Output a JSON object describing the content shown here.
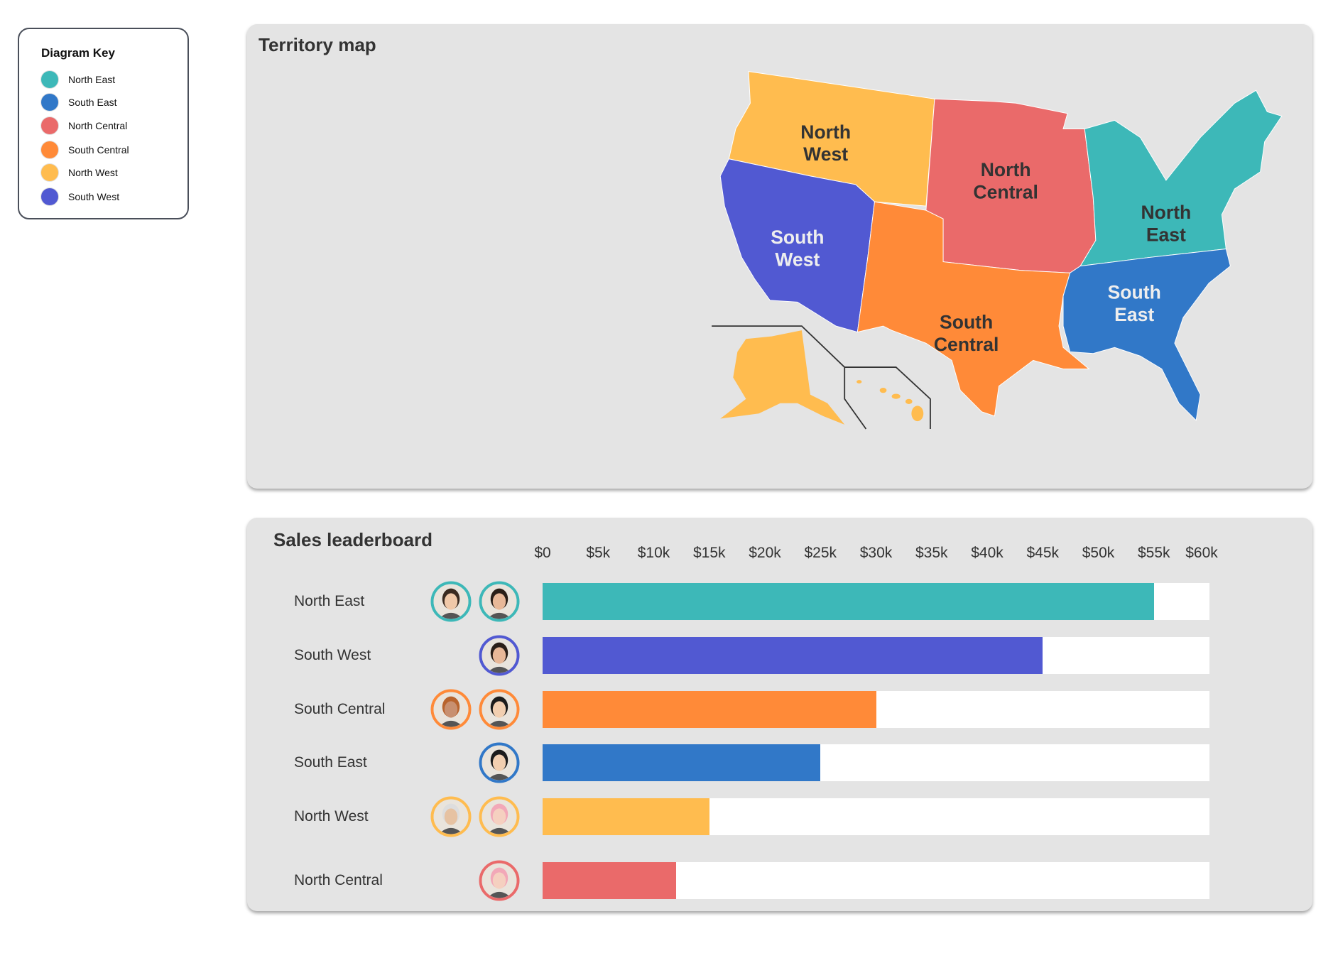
{
  "legend": {
    "title": "Diagram Key",
    "items": [
      {
        "label": "North East",
        "color": "#3db8b8"
      },
      {
        "label": "South East",
        "color": "#3178c8"
      },
      {
        "label": "North Central",
        "color": "#ea6a6a"
      },
      {
        "label": "South Central",
        "color": "#ff8a38"
      },
      {
        "label": "North West",
        "color": "#ffbc4f"
      },
      {
        "label": "South West",
        "color": "#5159d2"
      }
    ]
  },
  "territory_map": {
    "title": "Territory map",
    "regions": [
      {
        "id": "nw",
        "label_line1": "North",
        "label_line2": "West",
        "color": "#ffbc4f"
      },
      {
        "id": "sw",
        "label_line1": "South",
        "label_line2": "West",
        "color": "#5159d2"
      },
      {
        "id": "nc",
        "label_line1": "North",
        "label_line2": "Central",
        "color": "#ea6a6a"
      },
      {
        "id": "sc",
        "label_line1": "South",
        "label_line2": "Central",
        "color": "#ff8a38"
      },
      {
        "id": "ne",
        "label_line1": "North",
        "label_line2": "East",
        "color": "#3db8b8"
      },
      {
        "id": "se",
        "label_line1": "South",
        "label_line2": "East",
        "color": "#3178c8"
      }
    ]
  },
  "leaderboard": {
    "title": "Sales leaderboard"
  },
  "chart_data": {
    "type": "bar",
    "orientation": "horizontal",
    "title": "Sales leaderboard",
    "xlim": [
      0,
      60000
    ],
    "tick_labels": [
      "$0",
      "$5k",
      "$10k",
      "$15k",
      "$20k",
      "$25k",
      "$30k",
      "$35k",
      "$40k",
      "$45k",
      "$50k",
      "$55k",
      "$60k"
    ],
    "categories": [
      "North East",
      "South West",
      "South Central",
      "South East",
      "North West",
      "North Central"
    ],
    "values": [
      55000,
      45000,
      30000,
      25000,
      15000,
      12000
    ],
    "colors": [
      "#3db8b8",
      "#5159d2",
      "#ff8a38",
      "#3178c8",
      "#ffbc4f",
      "#ea6a6a"
    ],
    "avatars_per_row": [
      2,
      1,
      2,
      1,
      2,
      1
    ]
  }
}
